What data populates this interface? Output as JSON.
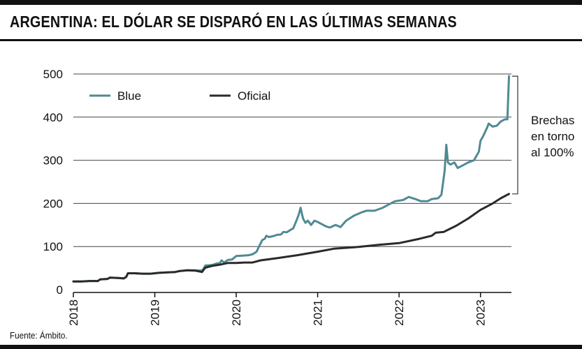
{
  "title": "ARGENTINA: EL DÓLAR SE DISPARÓ EN LAS ÚLTIMAS SEMANAS",
  "source": "Fuente: Ámbito.",
  "colors": {
    "blue": "#4f8a93",
    "oficial": "#2a2a2a",
    "grid": "#444444",
    "rule": "#111111"
  },
  "chart_data": {
    "type": "line",
    "title": "ARGENTINA: EL DÓLAR SE DISPARÓ EN LAS ÚLTIMAS SEMANAS",
    "xlabel": "",
    "ylabel": "",
    "xlim": [
      2018.0,
      2023.38
    ],
    "ylim": [
      0,
      500
    ],
    "x_ticks": [
      2018,
      2019,
      2020,
      2021,
      2022,
      2023
    ],
    "x_tick_labels": [
      "2018",
      "2019",
      "2020",
      "2021",
      "2022",
      "2023"
    ],
    "y_ticks": [
      0,
      100,
      200,
      300,
      400,
      500
    ],
    "y_tick_labels": [
      "0",
      "100",
      "200",
      "300",
      "400",
      "500"
    ],
    "grid": "horizontal",
    "legend": {
      "placement": "top-left",
      "entries": [
        "Blue",
        "Oficial"
      ]
    },
    "annotation": {
      "lines": [
        "Brechas",
        "en torno",
        "al 100%"
      ],
      "y_range": [
        222,
        495
      ]
    },
    "series": [
      {
        "name": "Blue",
        "color": "#4f8a93",
        "points": [
          [
            2018.0,
            19
          ],
          [
            2018.1,
            19
          ],
          [
            2018.2,
            20
          ],
          [
            2018.3,
            20
          ],
          [
            2018.33,
            24
          ],
          [
            2018.42,
            25
          ],
          [
            2018.45,
            28
          ],
          [
            2018.55,
            27
          ],
          [
            2018.62,
            26
          ],
          [
            2018.65,
            30
          ],
          [
            2018.67,
            38
          ],
          [
            2018.75,
            38
          ],
          [
            2018.85,
            37
          ],
          [
            2018.95,
            37
          ],
          [
            2019.05,
            39
          ],
          [
            2019.15,
            40
          ],
          [
            2019.25,
            41
          ],
          [
            2019.3,
            43
          ],
          [
            2019.4,
            45
          ],
          [
            2019.5,
            45
          ],
          [
            2019.58,
            44
          ],
          [
            2019.6,
            49
          ],
          [
            2019.62,
            56
          ],
          [
            2019.7,
            57
          ],
          [
            2019.75,
            60
          ],
          [
            2019.8,
            62
          ],
          [
            2019.82,
            68
          ],
          [
            2019.85,
            63
          ],
          [
            2019.9,
            69
          ],
          [
            2019.95,
            70
          ],
          [
            2020.0,
            78
          ],
          [
            2020.08,
            79
          ],
          [
            2020.15,
            80
          ],
          [
            2020.2,
            82
          ],
          [
            2020.25,
            88
          ],
          [
            2020.28,
            100
          ],
          [
            2020.32,
            115
          ],
          [
            2020.35,
            118
          ],
          [
            2020.37,
            125
          ],
          [
            2020.4,
            122
          ],
          [
            2020.45,
            124
          ],
          [
            2020.5,
            127
          ],
          [
            2020.55,
            128
          ],
          [
            2020.58,
            134
          ],
          [
            2020.62,
            133
          ],
          [
            2020.67,
            139
          ],
          [
            2020.7,
            142
          ],
          [
            2020.74,
            160
          ],
          [
            2020.77,
            175
          ],
          [
            2020.79,
            190
          ],
          [
            2020.82,
            165
          ],
          [
            2020.85,
            155
          ],
          [
            2020.88,
            160
          ],
          [
            2020.92,
            150
          ],
          [
            2020.96,
            160
          ],
          [
            2021.0,
            157
          ],
          [
            2021.05,
            152
          ],
          [
            2021.1,
            147
          ],
          [
            2021.15,
            144
          ],
          [
            2021.22,
            150
          ],
          [
            2021.28,
            145
          ],
          [
            2021.35,
            160
          ],
          [
            2021.45,
            172
          ],
          [
            2021.55,
            180
          ],
          [
            2021.6,
            183
          ],
          [
            2021.7,
            183
          ],
          [
            2021.8,
            190
          ],
          [
            2021.88,
            198
          ],
          [
            2021.95,
            205
          ],
          [
            2022.05,
            208
          ],
          [
            2022.12,
            215
          ],
          [
            2022.15,
            213
          ],
          [
            2022.2,
            210
          ],
          [
            2022.27,
            205
          ],
          [
            2022.35,
            205
          ],
          [
            2022.4,
            210
          ],
          [
            2022.48,
            212
          ],
          [
            2022.52,
            220
          ],
          [
            2022.56,
            275
          ],
          [
            2022.58,
            336
          ],
          [
            2022.6,
            295
          ],
          [
            2022.63,
            290
          ],
          [
            2022.68,
            295
          ],
          [
            2022.72,
            282
          ],
          [
            2022.8,
            290
          ],
          [
            2022.85,
            295
          ],
          [
            2022.92,
            300
          ],
          [
            2022.98,
            320
          ],
          [
            2023.0,
            345
          ],
          [
            2023.03,
            355
          ],
          [
            2023.08,
            375
          ],
          [
            2023.1,
            385
          ],
          [
            2023.15,
            378
          ],
          [
            2023.2,
            380
          ],
          [
            2023.25,
            390
          ],
          [
            2023.3,
            395
          ],
          [
            2023.33,
            395
          ],
          [
            2023.35,
            495
          ]
        ]
      },
      {
        "name": "Oficial",
        "color": "#2a2a2a",
        "points": [
          [
            2018.0,
            19
          ],
          [
            2018.1,
            19
          ],
          [
            2018.2,
            20
          ],
          [
            2018.3,
            20
          ],
          [
            2018.33,
            24
          ],
          [
            2018.42,
            25
          ],
          [
            2018.45,
            28
          ],
          [
            2018.55,
            27
          ],
          [
            2018.62,
            26
          ],
          [
            2018.65,
            30
          ],
          [
            2018.67,
            38
          ],
          [
            2018.75,
            38
          ],
          [
            2018.85,
            37
          ],
          [
            2018.95,
            37
          ],
          [
            2019.05,
            39
          ],
          [
            2019.15,
            40
          ],
          [
            2019.25,
            41
          ],
          [
            2019.3,
            43
          ],
          [
            2019.4,
            45
          ],
          [
            2019.5,
            44
          ],
          [
            2019.58,
            41
          ],
          [
            2019.62,
            51
          ],
          [
            2019.7,
            55
          ],
          [
            2019.8,
            58
          ],
          [
            2019.9,
            62
          ],
          [
            2020.0,
            62
          ],
          [
            2020.1,
            63
          ],
          [
            2020.2,
            63
          ],
          [
            2020.3,
            68
          ],
          [
            2020.5,
            73
          ],
          [
            2020.75,
            80
          ],
          [
            2021.0,
            88
          ],
          [
            2021.2,
            95
          ],
          [
            2021.5,
            99
          ],
          [
            2021.75,
            104
          ],
          [
            2022.0,
            108
          ],
          [
            2022.25,
            118
          ],
          [
            2022.4,
            125
          ],
          [
            2022.45,
            132
          ],
          [
            2022.55,
            134
          ],
          [
            2022.7,
            148
          ],
          [
            2022.85,
            165
          ],
          [
            2023.0,
            185
          ],
          [
            2023.15,
            200
          ],
          [
            2023.25,
            212
          ],
          [
            2023.35,
            222
          ]
        ]
      }
    ]
  }
}
